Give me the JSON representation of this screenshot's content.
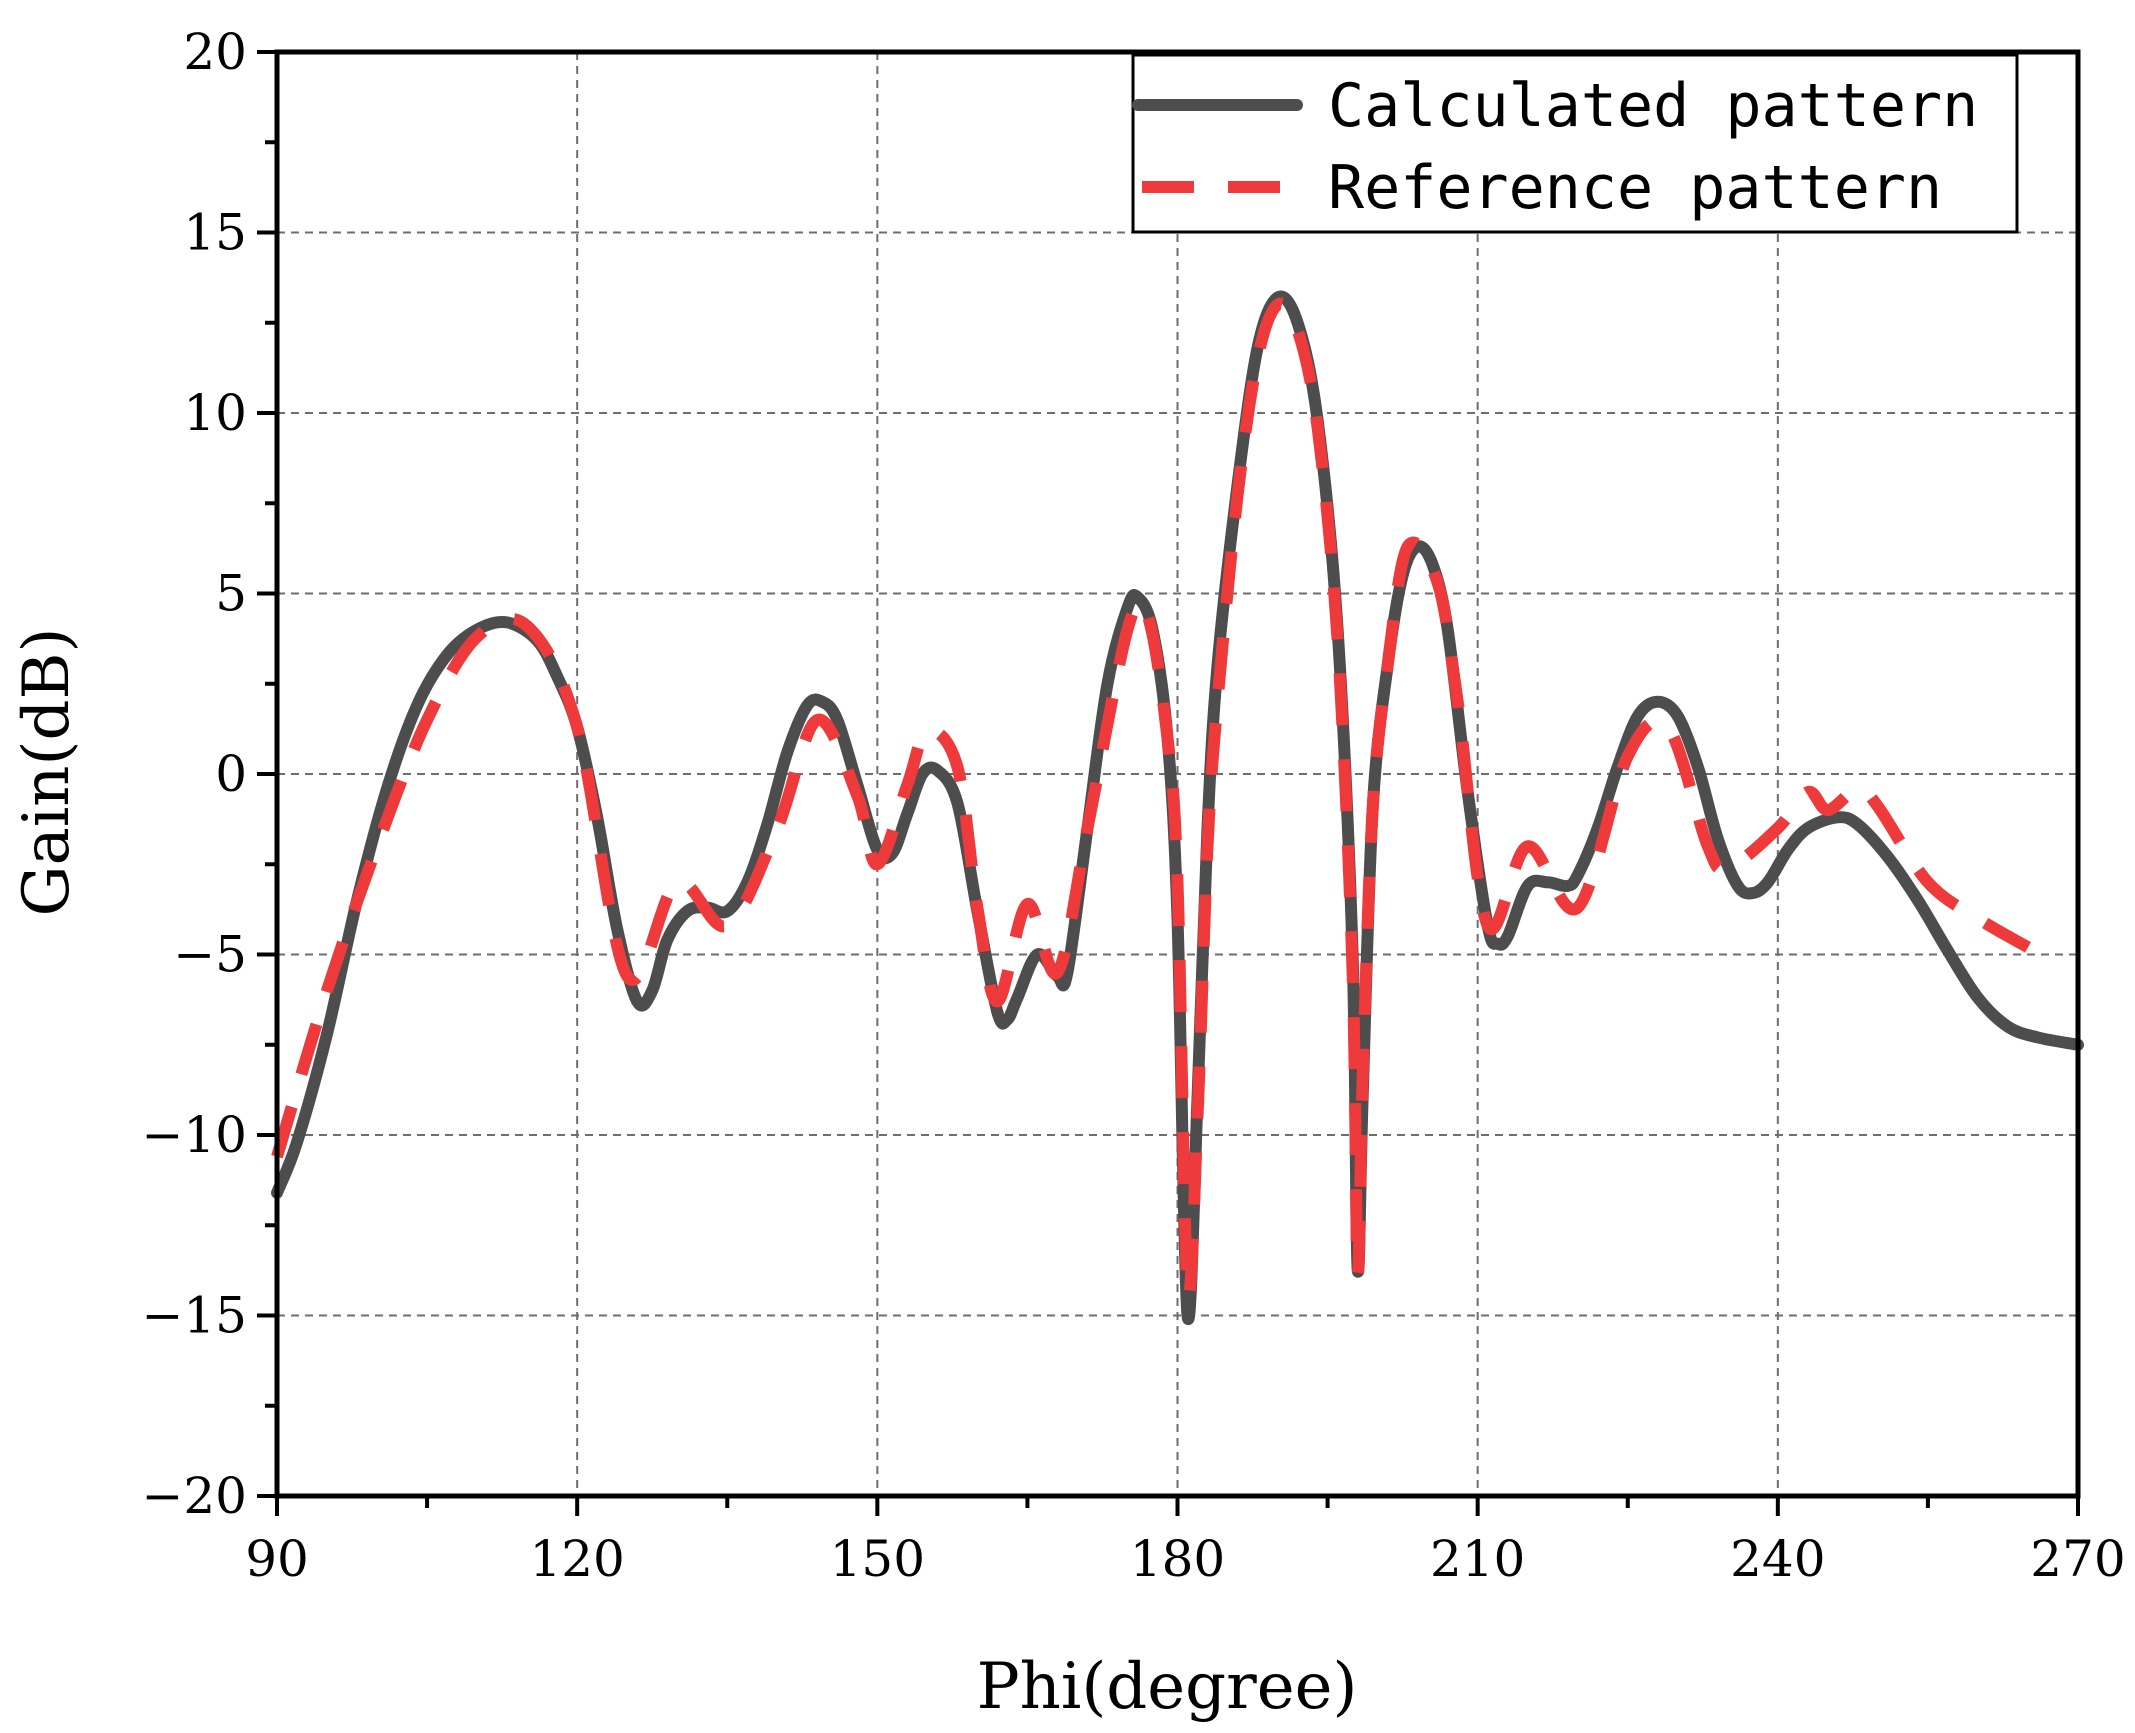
{
  "chart_data": {
    "type": "line",
    "title": "",
    "xlabel": "Phi(degree)",
    "ylabel": "Gain(dB)",
    "xlim": [
      90,
      270
    ],
    "ylim": [
      -20,
      20
    ],
    "xticks": [
      90,
      120,
      150,
      180,
      210,
      240,
      270
    ],
    "yticks": [
      -20,
      -15,
      -10,
      -5,
      0,
      5,
      10,
      15,
      20
    ],
    "xtick_labels": [
      "90",
      "120",
      "150",
      "180",
      "210",
      "240",
      "270"
    ],
    "ytick_labels": [
      "−20",
      "−15",
      "−10",
      "−5",
      "0",
      "5",
      "10",
      "15",
      "20"
    ],
    "grid": true,
    "legend_position": "top-right",
    "series": [
      {
        "name": "Calculated pattern",
        "color": "#4d4d4d",
        "style": "solid",
        "points": [
          [
            90,
            -11.6
          ],
          [
            92,
            -10.2
          ],
          [
            95,
            -7.2
          ],
          [
            98,
            -3.5
          ],
          [
            101,
            -0.4
          ],
          [
            104,
            1.9
          ],
          [
            107,
            3.3
          ],
          [
            110,
            4.0
          ],
          [
            113,
            4.2
          ],
          [
            116,
            3.7
          ],
          [
            118,
            2.7
          ],
          [
            120,
            1.3
          ],
          [
            122,
            -1.2
          ],
          [
            124,
            -4.3
          ],
          [
            126,
            -6.3
          ],
          [
            127.5,
            -6.0
          ],
          [
            129,
            -4.6
          ],
          [
            131,
            -3.8
          ],
          [
            133,
            -3.7
          ],
          [
            135,
            -3.8
          ],
          [
            137,
            -3.0
          ],
          [
            139,
            -1.4
          ],
          [
            141,
            0.6
          ],
          [
            143,
            1.9
          ],
          [
            144.5,
            2.0
          ],
          [
            146,
            1.5
          ],
          [
            148,
            -0.3
          ],
          [
            150,
            -2.1
          ],
          [
            151.5,
            -2.2
          ],
          [
            153,
            -1.1
          ],
          [
            154.5,
            0.0
          ],
          [
            156,
            0.1
          ],
          [
            158,
            -0.8
          ],
          [
            160,
            -3.8
          ],
          [
            162,
            -6.6
          ],
          [
            163,
            -6.8
          ],
          [
            164,
            -6.2
          ],
          [
            166,
            -5.0
          ],
          [
            168,
            -5.6
          ],
          [
            169,
            -5.5
          ],
          [
            171,
            -1.5
          ],
          [
            173,
            2.5
          ],
          [
            175,
            4.6
          ],
          [
            176,
            4.9
          ],
          [
            177.5,
            4.0
          ],
          [
            179,
            1.0
          ],
          [
            180,
            -4.0
          ],
          [
            181,
            -15.0
          ],
          [
            182,
            -9.0
          ],
          [
            183,
            -1.5
          ],
          [
            184,
            3.0
          ],
          [
            186,
            8.0
          ],
          [
            188,
            11.8
          ],
          [
            190,
            13.2
          ],
          [
            192,
            12.5
          ],
          [
            194,
            9.8
          ],
          [
            196,
            4.0
          ],
          [
            197.5,
            -5.0
          ],
          [
            198,
            -13.7
          ],
          [
            198.5,
            -9.0
          ],
          [
            199.5,
            -1.0
          ],
          [
            201,
            3.0
          ],
          [
            202.5,
            5.5
          ],
          [
            204,
            6.3
          ],
          [
            205.5,
            5.8
          ],
          [
            207,
            4.0
          ],
          [
            209,
            -0.5
          ],
          [
            211,
            -4.2
          ],
          [
            212,
            -4.7
          ],
          [
            213,
            -4.5
          ],
          [
            215,
            -3.1
          ],
          [
            217,
            -3.0
          ],
          [
            219,
            -3.1
          ],
          [
            220,
            -2.8
          ],
          [
            222,
            -1.5
          ],
          [
            224,
            0.2
          ],
          [
            226,
            1.6
          ],
          [
            228,
            2.0
          ],
          [
            230,
            1.6
          ],
          [
            232,
            0.2
          ],
          [
            234,
            -1.8
          ],
          [
            236,
            -3.1
          ],
          [
            237.5,
            -3.3
          ],
          [
            239,
            -3.0
          ],
          [
            241,
            -2.1
          ],
          [
            243,
            -1.5
          ],
          [
            246,
            -1.2
          ],
          [
            248,
            -1.4
          ],
          [
            251,
            -2.3
          ],
          [
            254,
            -3.5
          ],
          [
            257,
            -4.9
          ],
          [
            260,
            -6.2
          ],
          [
            263,
            -7.0
          ],
          [
            266,
            -7.3
          ],
          [
            270,
            -7.5
          ]
        ]
      },
      {
        "name": "Reference pattern",
        "color": "#ee3a3a",
        "style": "dashed",
        "points": [
          [
            90,
            -10.6
          ],
          [
            95,
            -6.0
          ],
          [
            100,
            -2.0
          ],
          [
            105,
            1.5
          ],
          [
            110,
            3.8
          ],
          [
            115,
            4.1
          ],
          [
            120,
            1.3
          ],
          [
            125,
            -5.6
          ],
          [
            130,
            -3.0
          ],
          [
            135,
            -4.2
          ],
          [
            140,
            -1.5
          ],
          [
            144,
            1.5
          ],
          [
            148,
            -0.6
          ],
          [
            150,
            -2.5
          ],
          [
            153,
            -0.3
          ],
          [
            155,
            1.2
          ],
          [
            158,
            0.2
          ],
          [
            160,
            -3.7
          ],
          [
            162,
            -6.3
          ],
          [
            165,
            -3.6
          ],
          [
            168,
            -5.5
          ],
          [
            171,
            -1.5
          ],
          [
            175,
            4.0
          ],
          [
            177,
            4.4
          ],
          [
            179,
            1.0
          ],
          [
            180,
            -3.0
          ],
          [
            181,
            -14.3
          ],
          [
            182,
            -9.5
          ],
          [
            183,
            -2.0
          ],
          [
            184,
            2.0
          ],
          [
            186,
            7.7
          ],
          [
            188,
            11.5
          ],
          [
            190,
            13.0
          ],
          [
            192,
            12.3
          ],
          [
            194,
            9.6
          ],
          [
            196,
            3.7
          ],
          [
            197.5,
            -5.5
          ],
          [
            198,
            -13.8
          ],
          [
            198.5,
            -8.5
          ],
          [
            199.5,
            -1.0
          ],
          [
            201,
            3.0
          ],
          [
            203,
            6.3
          ],
          [
            206,
            5.3
          ],
          [
            208,
            2.0
          ],
          [
            211,
            -4.2
          ],
          [
            215,
            -2.0
          ],
          [
            220,
            -3.7
          ],
          [
            225,
            0.5
          ],
          [
            229,
            1.3
          ],
          [
            233,
            -2.0
          ],
          [
            235,
            -2.6
          ],
          [
            240,
            -1.5
          ],
          [
            243,
            -0.5
          ],
          [
            245,
            -1.0
          ],
          [
            248,
            -0.4
          ],
          [
            250,
            -0.9
          ],
          [
            255,
            -3.0
          ],
          [
            260,
            -4.0
          ],
          [
            265,
            -4.8
          ]
        ]
      }
    ]
  }
}
